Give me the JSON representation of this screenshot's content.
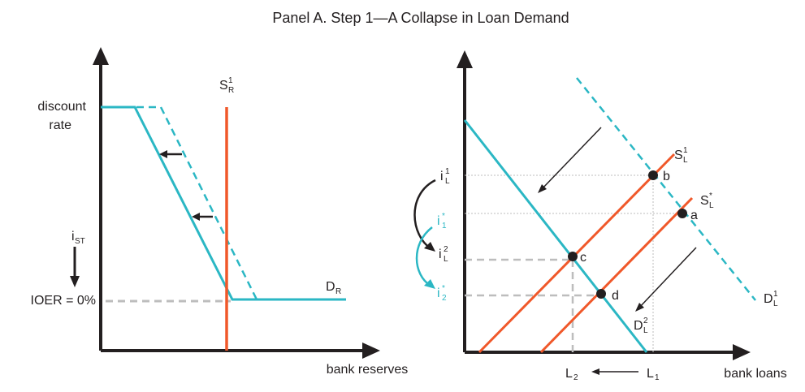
{
  "title": "Panel A. Step 1—A Collapse in Loan Demand",
  "colors": {
    "teal": "#2bb7c4",
    "orange": "#f0582a",
    "black": "#231f20",
    "gray": "#bdbdbd"
  },
  "left": {
    "y_label_line1": "discount",
    "y_label_line2": "rate",
    "i_st_main": "i",
    "i_st_sub": "ST",
    "ioer_label": "IOER = 0%",
    "x_label": "bank reserves",
    "supply_main": "S",
    "supply_sup": "1",
    "supply_sub": "R",
    "demand_main": "D",
    "demand_sub": "R"
  },
  "right": {
    "i1_main": "i",
    "i1_sup": "1",
    "i1_sub": "L",
    "istar1_main": "i",
    "istar1_sup": "*",
    "istar1_sub": "1",
    "i2_main": "i",
    "i2_sup": "2",
    "i2_sub": "L",
    "istar2_main": "i",
    "istar2_sup": "*",
    "istar2_sub": "2",
    "s1_main": "S",
    "s1_sup": "1",
    "s1_sub": "L",
    "sstar_main": "S",
    "sstar_sup": "*",
    "sstar_sub": "L",
    "d1_main": "D",
    "d1_sup": "1",
    "d1_sub": "L",
    "d2_main": "D",
    "d2_sup": "2",
    "d2_sub": "L",
    "point_a": "a",
    "point_b": "b",
    "point_c": "c",
    "point_d": "d",
    "l2_main": "L",
    "l2_sub": "2",
    "l1_main": "L",
    "l1_sub": "1",
    "x_label": "bank loans"
  }
}
